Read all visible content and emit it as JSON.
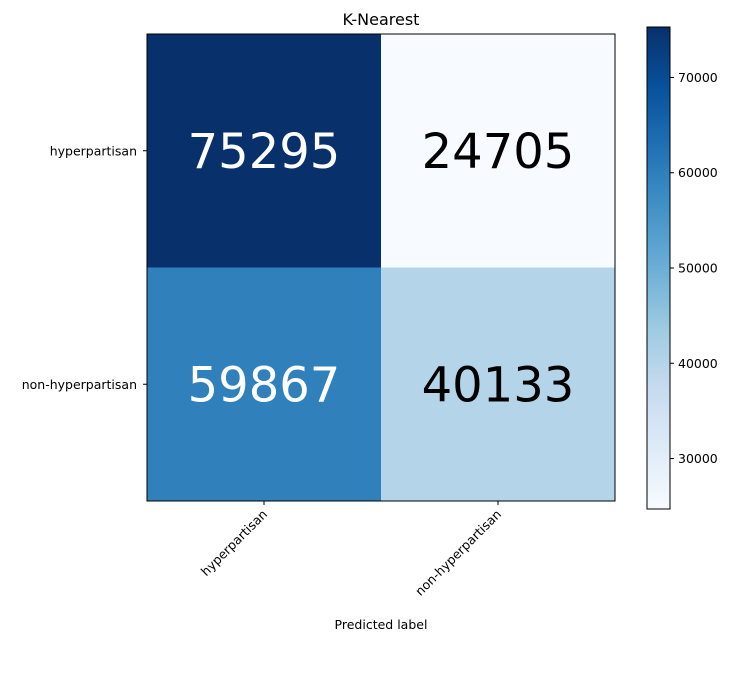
{
  "chart_data": {
    "type": "heatmap",
    "title": "K-Nearest",
    "xlabel": "Predicted label",
    "ylabel": "",
    "x_categories": [
      "hyperpartisan",
      "non-hyperpartisan"
    ],
    "y_categories": [
      "hyperpartisan",
      "non-hyperpartisan"
    ],
    "values": [
      [
        75295,
        24705
      ],
      [
        59867,
        40133
      ]
    ],
    "colormap": "Blues",
    "colorbar": {
      "range": [
        24705,
        75295
      ],
      "ticks": [
        30000,
        40000,
        50000,
        60000,
        70000
      ]
    },
    "text_colors": {
      "dark_bg": "#ffffff",
      "light_bg": "#000000"
    },
    "grid": false
  }
}
